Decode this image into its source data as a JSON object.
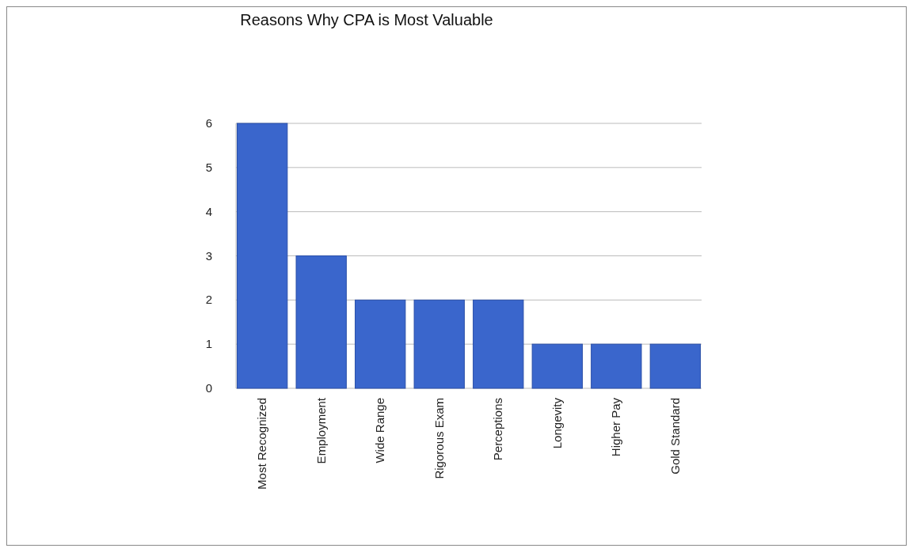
{
  "chart_data": {
    "type": "bar",
    "title": "Reasons Why CPA is Most Valuable",
    "categories": [
      "Most Recognized",
      "Employment",
      "Wide Range",
      "Rigorous Exam",
      "Perceptions",
      "Longevity",
      "Higher Pay",
      "Gold Standard"
    ],
    "values": [
      6,
      3,
      2,
      2,
      2,
      1,
      1,
      1
    ],
    "color": "#3a66cc",
    "ylim": [
      0,
      6
    ],
    "yticks": [
      0,
      1,
      2,
      3,
      4,
      5,
      6
    ],
    "grid": "y"
  }
}
